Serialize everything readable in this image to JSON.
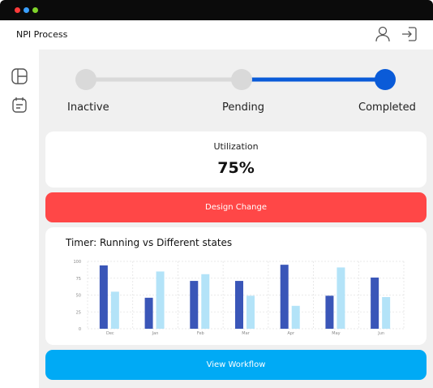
{
  "window": {
    "dots": [
      "#ff3b3b",
      "#3aa0ff",
      "#7fd32a"
    ]
  },
  "header": {
    "title": "NPI Process",
    "icons": [
      "user-icon",
      "sign-in-icon"
    ]
  },
  "sidebar": {
    "icons": [
      "layout-icon",
      "calendar-icon"
    ]
  },
  "progress": {
    "steps": [
      {
        "label": "Inactive",
        "state": "inactive"
      },
      {
        "label": "Pending",
        "state": "pending"
      },
      {
        "label": "Completed",
        "state": "completed"
      }
    ],
    "inactive_color": "#d9d9d9",
    "active_color": "#0a5bd8"
  },
  "utilization": {
    "title": "Utilization",
    "value": "75%"
  },
  "buttons": {
    "design_change": "Design Change",
    "design_change_color": "#ff4747",
    "view_workflow": "View Workflow",
    "view_workflow_color": "#00aaf5"
  },
  "chart_data": {
    "type": "bar",
    "title": "Timer: Running vs Different states",
    "categories": [
      "Dec",
      "Jan",
      "Feb",
      "Mar",
      "Apr",
      "May",
      "Jun"
    ],
    "yticks": [
      "100",
      "75",
      "50",
      "25",
      "0"
    ],
    "ylim": [
      0,
      100
    ],
    "grid": true,
    "series": [
      {
        "color": "#3a56b8",
        "values": [
          94,
          46,
          71,
          71,
          95,
          49,
          76
        ]
      },
      {
        "color": "#b3e3f8",
        "values": [
          55,
          85,
          81,
          49,
          34,
          91,
          47
        ]
      }
    ]
  }
}
